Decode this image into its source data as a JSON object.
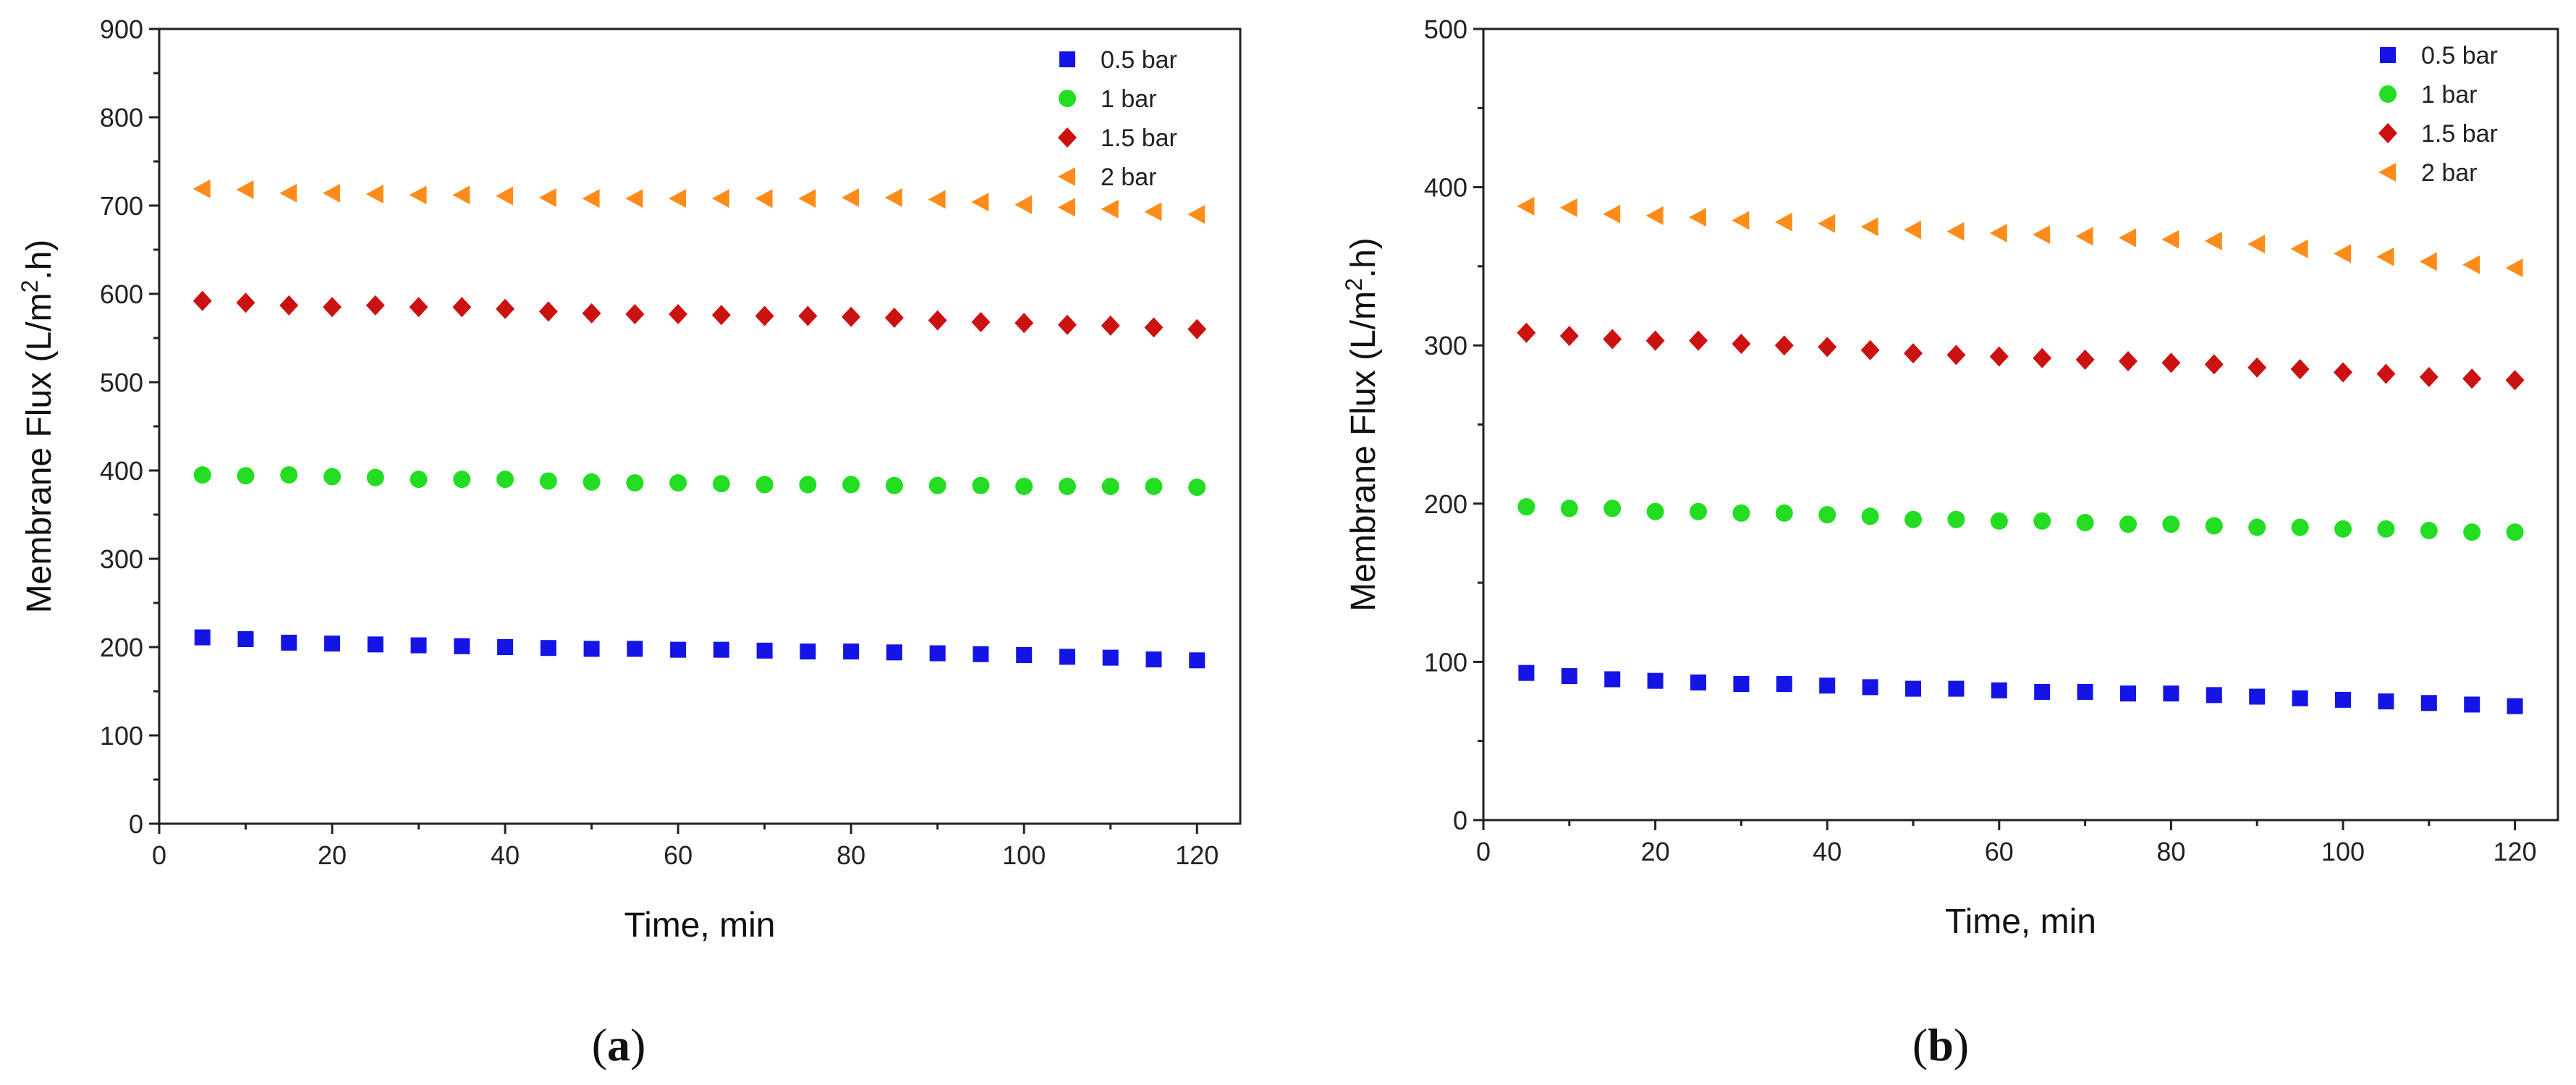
{
  "chart_data": [
    {
      "type": "scatter",
      "panel_label": "(a)",
      "panel_letter": "a",
      "xlabel": "Time, min",
      "ylabel_main": "Membrane Flux (L/m",
      "ylabel_sup": "2",
      "ylabel_end": ".h)",
      "xlim": [
        0,
        125
      ],
      "ylim": [
        0,
        900
      ],
      "xticks": [
        "0",
        "20",
        "40",
        "60",
        "80",
        "100",
        "120"
      ],
      "yticks": [
        "0",
        "100",
        "200",
        "300",
        "400",
        "500",
        "600",
        "700",
        "800",
        "900"
      ],
      "legend_position": "top-right",
      "x": [
        5,
        10,
        15,
        20,
        25,
        30,
        35,
        40,
        45,
        50,
        55,
        60,
        65,
        70,
        75,
        80,
        85,
        90,
        95,
        100,
        105,
        110,
        115,
        120
      ],
      "series": [
        {
          "name": "0.5 bar",
          "marker": "square",
          "color": "#1414e6",
          "values": [
            211,
            209,
            205,
            204,
            203,
            202,
            201,
            200,
            199,
            198,
            198,
            197,
            197,
            196,
            195,
            195,
            194,
            193,
            192,
            191,
            189,
            188,
            186,
            185
          ]
        },
        {
          "name": "1 bar",
          "marker": "circle",
          "color": "#22dd22",
          "values": [
            395,
            394,
            395,
            393,
            392,
            390,
            390,
            390,
            388,
            387,
            386,
            386,
            385,
            384,
            384,
            384,
            383,
            383,
            383,
            382,
            382,
            382,
            382,
            381
          ]
        },
        {
          "name": "1.5 bar",
          "marker": "diamond",
          "color": "#cc1111",
          "values": [
            592,
            590,
            587,
            585,
            587,
            585,
            585,
            583,
            580,
            578,
            577,
            577,
            576,
            575,
            575,
            574,
            573,
            570,
            568,
            567,
            565,
            564,
            562,
            560
          ]
        },
        {
          "name": "2 bar",
          "marker": "triangle-left",
          "color": "#ff8c1a",
          "values": [
            719,
            718,
            714,
            714,
            713,
            712,
            712,
            711,
            709,
            708,
            708,
            708,
            708,
            708,
            708,
            709,
            709,
            707,
            704,
            701,
            698,
            696,
            693,
            690
          ]
        }
      ]
    },
    {
      "type": "scatter",
      "panel_label": "(b)",
      "panel_letter": "b",
      "xlabel": "Time, min",
      "ylabel_main": "Membrane Flux (L/m",
      "ylabel_sup": "2",
      "ylabel_end": ".h)",
      "xlim": [
        0,
        125
      ],
      "ylim": [
        0,
        500
      ],
      "xticks": [
        "0",
        "20",
        "40",
        "60",
        "80",
        "100",
        "120"
      ],
      "yticks": [
        "0",
        "100",
        "200",
        "300",
        "400",
        "500"
      ],
      "legend_position": "top-right",
      "x": [
        5,
        10,
        15,
        20,
        25,
        30,
        35,
        40,
        45,
        50,
        55,
        60,
        65,
        70,
        75,
        80,
        85,
        90,
        95,
        100,
        105,
        110,
        115,
        120
      ],
      "series": [
        {
          "name": "0.5 bar",
          "marker": "square",
          "color": "#1414e6",
          "values": [
            93,
            91,
            89,
            88,
            87,
            86,
            86,
            85,
            84,
            83,
            83,
            82,
            81,
            81,
            80,
            80,
            79,
            78,
            77,
            76,
            75,
            74,
            73,
            72
          ]
        },
        {
          "name": "1 bar",
          "marker": "circle",
          "color": "#22dd22",
          "values": [
            198,
            197,
            197,
            195,
            195,
            194,
            194,
            193,
            192,
            190,
            190,
            189,
            189,
            188,
            187,
            187,
            186,
            185,
            185,
            184,
            184,
            183,
            182,
            182
          ]
        },
        {
          "name": "1.5 bar",
          "marker": "diamond",
          "color": "#cc1111",
          "values": [
            308,
            306,
            304,
            303,
            303,
            301,
            300,
            299,
            297,
            295,
            294,
            293,
            292,
            291,
            290,
            289,
            288,
            286,
            285,
            283,
            282,
            280,
            279,
            278
          ]
        },
        {
          "name": "2 bar",
          "marker": "triangle-left",
          "color": "#ff8c1a",
          "values": [
            388,
            387,
            383,
            382,
            381,
            379,
            378,
            377,
            375,
            373,
            372,
            371,
            370,
            369,
            368,
            367,
            366,
            364,
            361,
            358,
            356,
            353,
            351,
            349
          ]
        }
      ]
    }
  ]
}
